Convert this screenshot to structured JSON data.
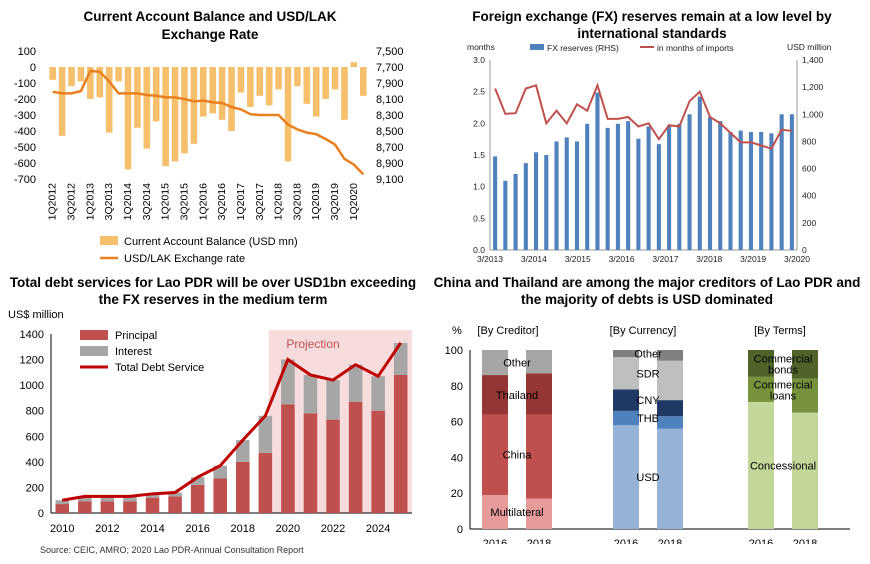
{
  "chart_data": [
    {
      "type": "bar",
      "title_lines": [
        "Current Account Balance and USD/LAK",
        "Exchange Rate"
      ],
      "categories": [
        "1Q2012",
        "2Q2012",
        "3Q2012",
        "4Q2012",
        "1Q2013",
        "2Q2013",
        "3Q2013",
        "4Q2013",
        "1Q2014",
        "2Q2014",
        "3Q2014",
        "4Q2014",
        "1Q2015",
        "2Q2015",
        "3Q2015",
        "4Q2015",
        "1Q2016",
        "2Q2016",
        "3Q2016",
        "4Q2016",
        "1Q2017",
        "2Q2017",
        "3Q2017",
        "4Q2017",
        "1Q2018",
        "2Q2018",
        "3Q2018",
        "4Q2018",
        "1Q2019",
        "2Q2019",
        "3Q2019",
        "4Q2019",
        "1Q2020",
        "2Q2020"
      ],
      "xtick_labels": [
        "1Q2012",
        "3Q2012",
        "1Q2013",
        "3Q2013",
        "1Q2014",
        "3Q2014",
        "1Q2015",
        "3Q2015",
        "1Q2016",
        "3Q2016",
        "1Q2017",
        "3Q2017",
        "1Q2018",
        "3Q2018",
        "1Q2019",
        "3Q2019",
        "1Q2020"
      ],
      "y_left_ticks": [
        "100",
        "0",
        "-100",
        "-200",
        "-300",
        "-400",
        "-500",
        "-600",
        "-700"
      ],
      "y_right_ticks": [
        "7,500",
        "7,700",
        "7,900",
        "8,100",
        "8,300",
        "8,500",
        "8,700",
        "8,900",
        "9,100"
      ],
      "ylim_left": [
        -700,
        100
      ],
      "ylim_right": [
        7500,
        9100
      ],
      "series": [
        {
          "name": "Current Account Balance  (USD mn)",
          "kind": "bar",
          "axis": "left",
          "values": [
            -80,
            -430,
            -120,
            -90,
            -200,
            -190,
            -410,
            -90,
            -640,
            -380,
            -510,
            -340,
            -620,
            -590,
            -540,
            -480,
            -310,
            -290,
            -330,
            -400,
            -160,
            -250,
            -180,
            -240,
            -140,
            -590,
            -120,
            -230,
            -310,
            -200,
            -140,
            -330,
            30,
            -180
          ]
        },
        {
          "name": "USD/LAK Exchange rate",
          "kind": "line",
          "axis": "right",
          "values": [
            8010,
            8030,
            8030,
            8000,
            7750,
            7760,
            7880,
            8030,
            8030,
            8030,
            8050,
            8060,
            8080,
            8080,
            8100,
            8130,
            8120,
            8140,
            8150,
            8200,
            8230,
            8290,
            8300,
            8300,
            8300,
            8420,
            8480,
            8520,
            8540,
            8600,
            8670,
            8850,
            8920,
            9040
          ]
        }
      ],
      "colors": {
        "bar": "#F5BF6B",
        "line": "#E8801E"
      }
    },
    {
      "type": "bar",
      "title_lines": [
        "Foreign exchange (FX) reserves remain at a low level by",
        "international standards"
      ],
      "left_unit": "months",
      "right_unit": "USD million",
      "y_left_ticks": [
        "3.0",
        "2.5",
        "2.0",
        "1.5",
        "1.0",
        "0.5",
        "0.0"
      ],
      "y_right_ticks": [
        "1,400",
        "1,200",
        "1,000",
        "800",
        "600",
        "400",
        "200",
        "0"
      ],
      "ylim_left": [
        0,
        3.0
      ],
      "ylim_right": [
        0,
        1400
      ],
      "xtick_labels": [
        "3/2013",
        "3/2014",
        "3/2015",
        "3/2016",
        "3/2017",
        "3/2018",
        "3/2019",
        "3/2020"
      ],
      "series": [
        {
          "name": "FX reserves (RHS)",
          "kind": "bar",
          "axis": "right",
          "values": [
            690,
            510,
            560,
            640,
            720,
            700,
            800,
            830,
            800,
            930,
            1160,
            900,
            930,
            950,
            820,
            910,
            780,
            920,
            930,
            1000,
            1130,
            980,
            950,
            870,
            880,
            870,
            870,
            860,
            1000,
            1000
          ]
        },
        {
          "name": "in months of imports",
          "kind": "line",
          "axis": "left",
          "values": [
            2.55,
            2.15,
            2.16,
            2.55,
            2.6,
            2.0,
            2.2,
            2.0,
            2.3,
            2.2,
            2.6,
            2.07,
            2.07,
            2.1,
            1.95,
            2.0,
            1.75,
            1.97,
            1.95,
            2.35,
            2.5,
            2.1,
            2.0,
            1.85,
            1.7,
            1.7,
            1.65,
            1.6,
            1.9,
            1.88
          ]
        }
      ],
      "colors": {
        "bar": "#4F81BD",
        "line": "#C0504D"
      }
    },
    {
      "type": "bar",
      "title_lines": [
        "Total debt services for Lao PDR will be over USD1bn exceeding",
        "the FX reserves in the medium term"
      ],
      "ylabel": "US$ million",
      "categories": [
        "2010",
        "2011",
        "2012",
        "2013",
        "2014",
        "2015",
        "2016",
        "2017",
        "2018",
        "2019",
        "2020",
        "2021",
        "2022",
        "2023",
        "2024",
        "2025"
      ],
      "xtick_labels": [
        "2010",
        "2012",
        "2014",
        "2016",
        "2018",
        "2020",
        "2022",
        "2024"
      ],
      "y_ticks": [
        "1400",
        "1200",
        "1000",
        "800",
        "600",
        "400",
        "200",
        "0"
      ],
      "ylim": [
        0,
        1400
      ],
      "projection_label": "Projection",
      "series": [
        {
          "name": "Principal",
          "kind": "bar",
          "values": [
            70,
            90,
            90,
            90,
            120,
            130,
            220,
            270,
            400,
            470,
            850,
            780,
            730,
            870,
            800,
            1080
          ]
        },
        {
          "name": "Interest",
          "kind": "bar",
          "values": [
            30,
            40,
            40,
            40,
            30,
            30,
            60,
            100,
            170,
            290,
            350,
            300,
            310,
            290,
            270,
            250
          ]
        },
        {
          "name": "Total Debt Service",
          "kind": "line",
          "values": [
            100,
            130,
            130,
            130,
            150,
            160,
            280,
            370,
            570,
            760,
            1200,
            1080,
            1040,
            1160,
            1070,
            1330
          ]
        }
      ],
      "colors": {
        "principal": "#C0504D",
        "interest": "#A6A6A6",
        "line": "#C00000",
        "projection": "#F6DCDC"
      }
    },
    {
      "type": "bar",
      "title_lines": [
        "China and Thailand are among the major creditors of Lao PDR and",
        "the majority of debts is USD dominated"
      ],
      "y_unit": "%",
      "y_ticks": [
        "100",
        "80",
        "60",
        "40",
        "20",
        "0"
      ],
      "ylim": [
        0,
        100
      ],
      "groups": [
        {
          "header": "[By Creditor]",
          "categories": [
            "2016",
            "2018"
          ],
          "segments": [
            {
              "name": "Multilateral",
              "values": [
                19,
                17
              ],
              "color": "#E69A9A"
            },
            {
              "name": "China",
              "values": [
                45,
                47
              ],
              "color": "#C0504D"
            },
            {
              "name": "Thailand",
              "values": [
                22,
                23
              ],
              "color": "#943634"
            },
            {
              "name": "Other",
              "values": [
                14,
                13
              ],
              "color": "#A6A6A6"
            }
          ]
        },
        {
          "header": "[By Currency]",
          "categories": [
            "2016",
            "2018"
          ],
          "segments": [
            {
              "name": "USD",
              "values": [
                58,
                56
              ],
              "color": "#95B3D7"
            },
            {
              "name": "THB",
              "values": [
                8,
                7
              ],
              "color": "#4F81BD"
            },
            {
              "name": "CNY",
              "values": [
                12,
                9
              ],
              "color": "#1F3864"
            },
            {
              "name": "SDR",
              "values": [
                18,
                22
              ],
              "color": "#BFBFBF"
            },
            {
              "name": "Other",
              "values": [
                4,
                6
              ],
              "color": "#808080"
            }
          ]
        },
        {
          "header": "[By Terms]",
          "categories": [
            "2016",
            "2018"
          ],
          "segments": [
            {
              "name": "Concessional",
              "values": [
                71,
                65
              ],
              "color": "#C4D79B"
            },
            {
              "name": "Commercial loans",
              "values": [
                14,
                19
              ],
              "color": "#76923C"
            },
            {
              "name": "Commercial bonds",
              "values": [
                15,
                16
              ],
              "color": "#4F6228"
            }
          ]
        }
      ]
    }
  ],
  "source": "Source: CEIC, AMRO; 2020 Lao PDR-Annual Consultation Report"
}
